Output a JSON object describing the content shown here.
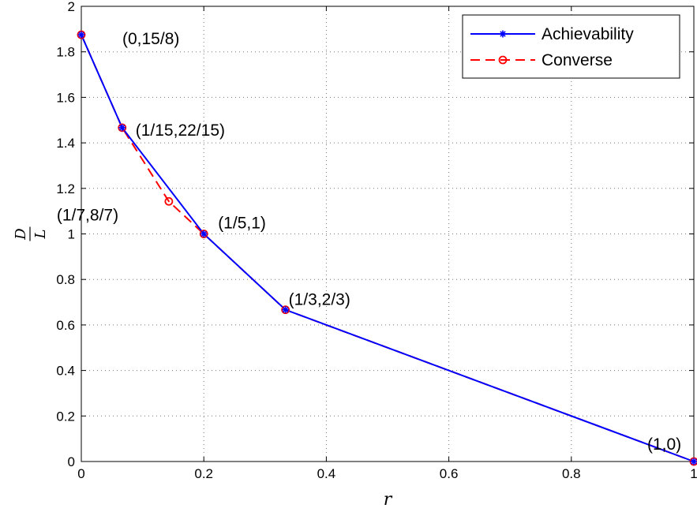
{
  "chart_data": {
    "type": "line",
    "xlabel": "r",
    "ylabel_num": "D",
    "ylabel_den": "L",
    "xlim": [
      0,
      1
    ],
    "ylim": [
      0,
      2
    ],
    "xticks": [
      0,
      0.2,
      0.4,
      0.6,
      0.8,
      1
    ],
    "xtick_labels": [
      "0",
      "0.2",
      "0.4",
      "0.6",
      "0.8",
      "1"
    ],
    "yticks": [
      0,
      0.2,
      0.4,
      0.6,
      0.8,
      1,
      1.2,
      1.4,
      1.6,
      1.8,
      2
    ],
    "ytick_labels": [
      "0",
      "0.2",
      "0.4",
      "0.6",
      "0.8",
      "1",
      "1.2",
      "1.4",
      "1.6",
      "1.8",
      "2"
    ],
    "grid": true,
    "legend_position": "top-right",
    "series": [
      {
        "name": "Achievability",
        "color": "#0000ff",
        "line_style": "solid",
        "marker": "asterisk",
        "x": [
          0,
          0.0667,
          0.2,
          0.3333,
          1
        ],
        "y": [
          1.875,
          1.4667,
          1,
          0.6667,
          0
        ]
      },
      {
        "name": "Converse",
        "color": "#ff0000",
        "line_style": "dashed",
        "marker": "circle",
        "x": [
          0,
          0.0667,
          0.1429,
          0.2,
          0.3333,
          1
        ],
        "y": [
          1.875,
          1.4667,
          1.1429,
          1,
          0.6667,
          0
        ]
      }
    ],
    "annotations": [
      {
        "text": "(0,15/8)",
        "x": 0,
        "y": 1.875
      },
      {
        "text": "(1/15,22/15)",
        "x": 0.0667,
        "y": 1.4667
      },
      {
        "text": "(1/7,8/7)",
        "x": 0.1429,
        "y": 1.1429
      },
      {
        "text": "(1/5,1)",
        "x": 0.2,
        "y": 1
      },
      {
        "text": "(1/3,2/3)",
        "x": 0.3333,
        "y": 0.6667
      },
      {
        "text": "(1,0)",
        "x": 1,
        "y": 0
      }
    ]
  }
}
